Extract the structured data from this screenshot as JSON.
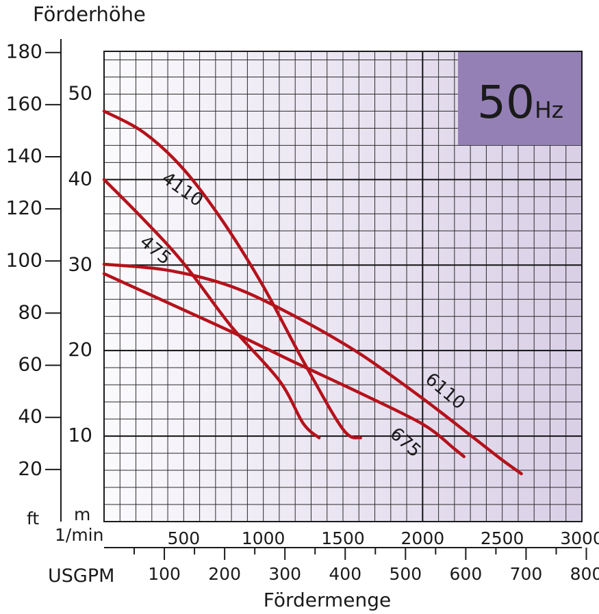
{
  "chart_data": {
    "type": "line",
    "title": "Förderhöhe",
    "badge": {
      "big": "50",
      "small": "Hz"
    },
    "xlabel": "Fördermenge",
    "axes": {
      "m_unit": "m",
      "ft_unit": "ft",
      "lpm_unit": "1/min",
      "usgpm_unit": "USGPM",
      "m_ticks": [
        "10",
        "20",
        "30",
        "40",
        "50"
      ],
      "ft_ticks": [
        "20",
        "40",
        "60",
        "80",
        "100",
        "120",
        "140",
        "160",
        "180"
      ],
      "lpm_ticks": [
        "500",
        "1000",
        "1500",
        "2000",
        "2500",
        "3000"
      ],
      "usgpm_ticks": [
        "100",
        "200",
        "300",
        "400",
        "500",
        "600",
        "700",
        "800"
      ]
    },
    "xlim": [
      0,
      3000
    ],
    "ylim": [
      0,
      55
    ],
    "grid": true,
    "colors": {
      "curve": "#b5121b",
      "badge": "#9480b5",
      "bg_left": "#fbfafd",
      "bg_right": "#d9cfe6"
    },
    "series": [
      {
        "name": "4110",
        "x": [
          0,
          250,
          500,
          750,
          1000,
          1250,
          1500,
          1610
        ],
        "y": [
          48,
          45.5,
          41.2,
          35,
          27.5,
          18.8,
          10.8,
          9.8
        ]
      },
      {
        "name": "475",
        "x": [
          0,
          250,
          500,
          800,
          1100,
          1250,
          1350
        ],
        "y": [
          40,
          35.3,
          30.2,
          22.8,
          16.5,
          11.5,
          9.8
        ]
      },
      {
        "name": "6110",
        "x": [
          0,
          400,
          800,
          1200,
          1600,
          2000,
          2300,
          2500,
          2620
        ],
        "y": [
          30.1,
          29.4,
          27.5,
          24,
          19.7,
          14.4,
          10.1,
          7.2,
          5.6
        ]
      },
      {
        "name": "675",
        "x": [
          0,
          400,
          800,
          1200,
          1600,
          2000,
          2200,
          2260
        ],
        "y": [
          29,
          25.6,
          22.2,
          18.6,
          15.1,
          11.4,
          8.5,
          7.6
        ]
      }
    ],
    "curve_labels": [
      {
        "name": "4110",
        "x": 490,
        "y": 38.8,
        "angle": 35
      },
      {
        "name": "475",
        "x": 320,
        "y": 31.7,
        "angle": 40
      },
      {
        "name": "6110",
        "x": 2140,
        "y": 15.2,
        "angle": 40
      },
      {
        "name": "675",
        "x": 1890,
        "y": 9.2,
        "angle": 42
      }
    ]
  }
}
